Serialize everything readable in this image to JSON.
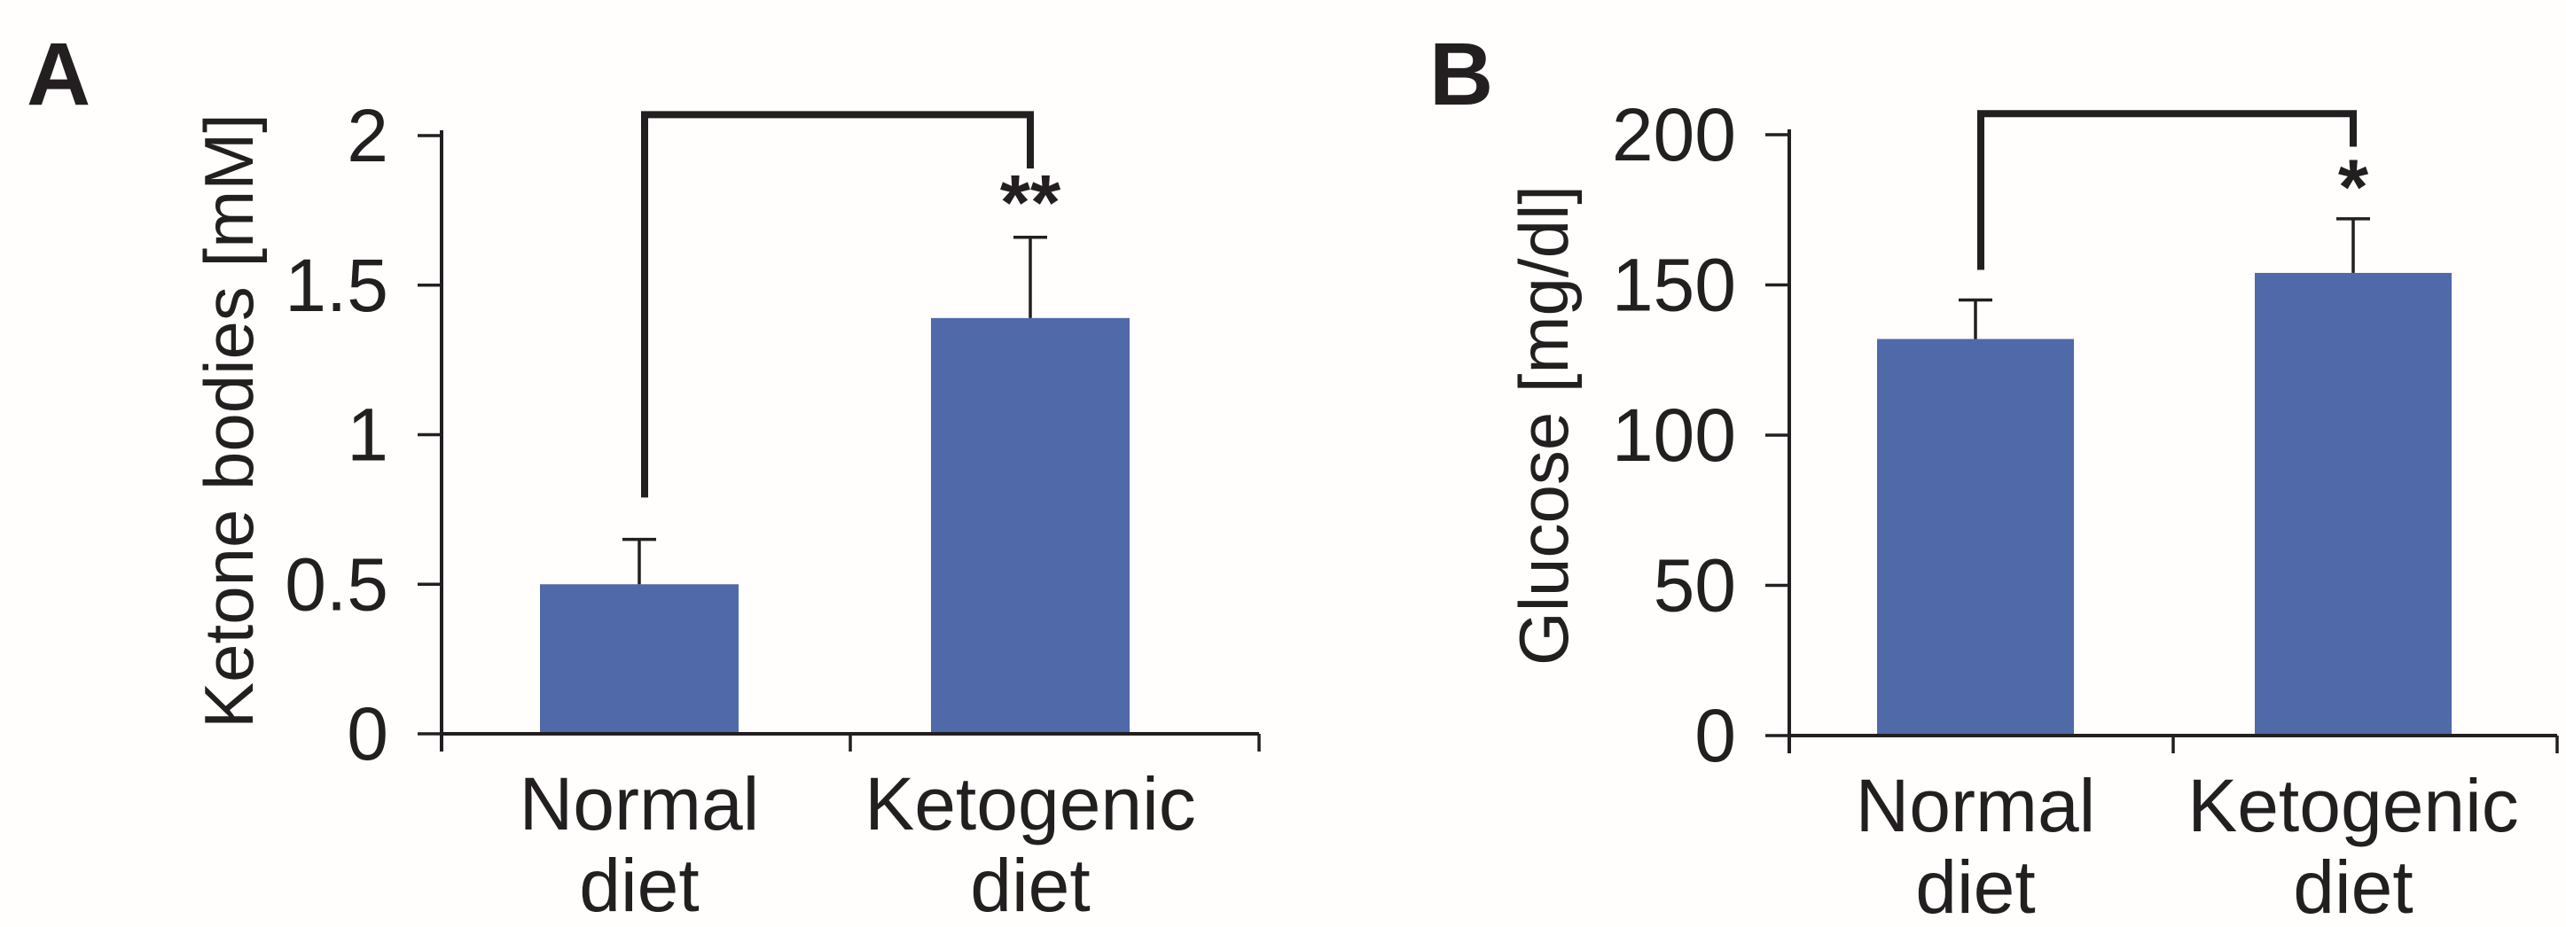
{
  "figure": {
    "background": "#fffefc",
    "bar_color": "#4f69a9",
    "axis_color": "#231f20",
    "text_color": "#231f20"
  },
  "chart_data": [
    {
      "type": "bar",
      "panel": "A",
      "title": "",
      "xlabel": "",
      "ylabel": "Ketone bodies [mM]",
      "categories": [
        "Normal diet",
        "Ketogenic diet"
      ],
      "values": [
        0.5,
        1.39
      ],
      "errors_plus": [
        0.15,
        0.27
      ],
      "ylim": [
        0,
        2
      ],
      "yticks": [
        0,
        0.5,
        1,
        1.5,
        2
      ],
      "ytick_labels": [
        "0",
        "0.5",
        "1",
        "1.5",
        "2"
      ],
      "grid": false,
      "legend": null,
      "significance": {
        "text": "**",
        "category_index": 1,
        "y_value": 1.77
      },
      "bracket": {
        "from_category": 0,
        "to_category": 1,
        "top_value": 2.07,
        "left_drop_value": 0.79,
        "right_drop_value": 1.89
      }
    },
    {
      "type": "bar",
      "panel": "B",
      "title": "",
      "xlabel": "",
      "ylabel": "Glucose [mg/dl]",
      "categories": [
        "Normal diet",
        "Ketogenic diet"
      ],
      "values": [
        132,
        154
      ],
      "errors_plus": [
        13,
        18
      ],
      "ylim": [
        0,
        200
      ],
      "yticks": [
        0,
        50,
        100,
        150,
        200
      ],
      "ytick_labels": [
        "0",
        "50",
        "100",
        "150",
        "200"
      ],
      "grid": false,
      "legend": null,
      "significance": {
        "text": "*",
        "category_index": 1,
        "y_value": 182
      },
      "bracket": {
        "from_category": 0,
        "to_category": 1,
        "top_value": 207,
        "left_drop_value": 155,
        "right_drop_value": 196
      }
    }
  ]
}
